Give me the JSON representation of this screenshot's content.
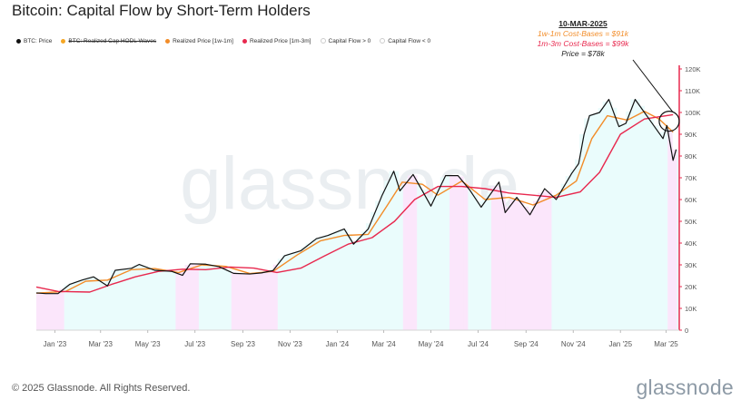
{
  "title": "Bitcoin: Capital Flow by Short-Term Holders",
  "legend": [
    {
      "label": "BTC: Price",
      "color": "#111111",
      "struck": false
    },
    {
      "label": "BTC: Realized Cap HODL Waves",
      "color": "#f5a623",
      "struck": true
    },
    {
      "label": "Realized Price [1w-1m]",
      "color": "#f28c28",
      "struck": false
    },
    {
      "label": "Realized Price [1m-3m]",
      "color": "#e8284e",
      "struck": false
    },
    {
      "label": "Capital Flow > 0",
      "color": "#ffffff",
      "struck": false,
      "outline": true
    },
    {
      "label": "Capital Flow < 0",
      "color": "#ffffff",
      "struck": false,
      "outline": true
    }
  ],
  "annotation": {
    "date": "10-MAR-2025",
    "line1": "1w-1m Cost-Bases = $91k",
    "line2": "1m-3m Cost-Bases = $99k",
    "line3": "Price = $78k"
  },
  "watermark": "glassnode",
  "footer": "© 2025 Glassnode. All Rights Reserved.",
  "brand": "glassnode",
  "colors": {
    "price": "#111111",
    "realized_1w_1m": "#f28c28",
    "realized_1m_3m": "#e8284e",
    "flow_positive": "#eafcfc",
    "flow_negative": "#fbe6fb",
    "axis": "#e8284e",
    "gridtext": "#555555"
  },
  "chart_data": {
    "type": "line",
    "title": "Bitcoin: Capital Flow by Short-Term Holders",
    "xlabel": "",
    "ylabel": "",
    "x_range": [
      "2022-12-08",
      "2025-03-18"
    ],
    "ylim": [
      0,
      120000
    ],
    "y_ticks": [
      0,
      10000,
      20000,
      30000,
      40000,
      50000,
      60000,
      70000,
      80000,
      90000,
      100000,
      110000,
      120000
    ],
    "y_tick_labels": [
      "0",
      "10K",
      "20K",
      "30K",
      "40K",
      "50K",
      "60K",
      "70K",
      "80K",
      "90K",
      "100K",
      "110K",
      "120K"
    ],
    "x_ticks": [
      {
        "date": "2023-01-01",
        "label": "Jan '23"
      },
      {
        "date": "2023-03-01",
        "label": "Mar '23"
      },
      {
        "date": "2023-05-01",
        "label": "May '23"
      },
      {
        "date": "2023-07-01",
        "label": "Jul '23"
      },
      {
        "date": "2023-09-01",
        "label": "Sep '23"
      },
      {
        "date": "2023-11-01",
        "label": "Nov '23"
      },
      {
        "date": "2024-01-01",
        "label": "Jan '24"
      },
      {
        "date": "2024-03-01",
        "label": "Mar '24"
      },
      {
        "date": "2024-05-01",
        "label": "May '24"
      },
      {
        "date": "2024-07-01",
        "label": "Jul '24"
      },
      {
        "date": "2024-09-01",
        "label": "Sep '24"
      },
      {
        "date": "2024-11-01",
        "label": "Nov '24"
      },
      {
        "date": "2025-01-01",
        "label": "Jan '25"
      },
      {
        "date": "2025-03-01",
        "label": "Mar '25"
      }
    ],
    "negative_flow_periods": [
      [
        "2022-12-08",
        "2023-01-12"
      ],
      [
        "2023-06-05",
        "2023-07-06"
      ],
      [
        "2023-08-18",
        "2023-10-16"
      ],
      [
        "2024-03-27",
        "2024-04-12"
      ],
      [
        "2024-05-24",
        "2024-06-16"
      ],
      [
        "2024-07-15",
        "2024-09-30"
      ],
      [
        "2025-03-04",
        "2025-03-14"
      ]
    ],
    "series": [
      {
        "name": "BTC: Price",
        "color": "#111111",
        "points": [
          [
            "2022-12-08",
            17100
          ],
          [
            "2022-12-20",
            16800
          ],
          [
            "2023-01-05",
            16800
          ],
          [
            "2023-01-20",
            21000
          ],
          [
            "2023-02-05",
            23000
          ],
          [
            "2023-02-20",
            24500
          ],
          [
            "2023-03-10",
            20300
          ],
          [
            "2023-03-20",
            27500
          ],
          [
            "2023-04-10",
            28400
          ],
          [
            "2023-04-20",
            30200
          ],
          [
            "2023-05-10",
            27500
          ],
          [
            "2023-06-01",
            27000
          ],
          [
            "2023-06-15",
            25200
          ],
          [
            "2023-06-25",
            30500
          ],
          [
            "2023-07-15",
            30300
          ],
          [
            "2023-08-01",
            29200
          ],
          [
            "2023-08-20",
            26100
          ],
          [
            "2023-09-10",
            25800
          ],
          [
            "2023-09-25",
            26300
          ],
          [
            "2023-10-10",
            27400
          ],
          [
            "2023-10-25",
            34200
          ],
          [
            "2023-11-15",
            36500
          ],
          [
            "2023-12-05",
            42000
          ],
          [
            "2023-12-20",
            43500
          ],
          [
            "2024-01-10",
            46500
          ],
          [
            "2024-01-22",
            39500
          ],
          [
            "2024-02-10",
            46500
          ],
          [
            "2024-02-28",
            62000
          ],
          [
            "2024-03-14",
            73000
          ],
          [
            "2024-03-22",
            64000
          ],
          [
            "2024-04-08",
            71500
          ],
          [
            "2024-04-20",
            64000
          ],
          [
            "2024-05-01",
            57000
          ],
          [
            "2024-05-20",
            71000
          ],
          [
            "2024-06-05",
            71000
          ],
          [
            "2024-06-20",
            64500
          ],
          [
            "2024-07-05",
            56500
          ],
          [
            "2024-07-28",
            68000
          ],
          [
            "2024-08-05",
            54000
          ],
          [
            "2024-08-20",
            61000
          ],
          [
            "2024-09-06",
            53000
          ],
          [
            "2024-09-25",
            65000
          ],
          [
            "2024-10-10",
            60000
          ],
          [
            "2024-10-30",
            72000
          ],
          [
            "2024-11-08",
            76500
          ],
          [
            "2024-11-15",
            90000
          ],
          [
            "2024-11-22",
            98500
          ],
          [
            "2024-12-05",
            100000
          ],
          [
            "2024-12-17",
            106000
          ],
          [
            "2024-12-30",
            93500
          ],
          [
            "2025-01-08",
            95000
          ],
          [
            "2025-01-20",
            106000
          ],
          [
            "2025-02-05",
            98000
          ],
          [
            "2025-02-25",
            88000
          ],
          [
            "2025-03-02",
            94000
          ],
          [
            "2025-03-10",
            78000
          ],
          [
            "2025-03-14",
            83000
          ]
        ]
      },
      {
        "name": "Realized Price [1w-1m]",
        "color": "#f28c28",
        "points": [
          [
            "2022-12-08",
            17000
          ],
          [
            "2023-01-15",
            17800
          ],
          [
            "2023-02-10",
            22500
          ],
          [
            "2023-03-10",
            23000
          ],
          [
            "2023-04-10",
            27800
          ],
          [
            "2023-05-10",
            28300
          ],
          [
            "2023-06-10",
            26500
          ],
          [
            "2023-07-10",
            30000
          ],
          [
            "2023-08-10",
            29300
          ],
          [
            "2023-09-10",
            26000
          ],
          [
            "2023-10-10",
            27000
          ],
          [
            "2023-11-10",
            34500
          ],
          [
            "2023-12-10",
            41000
          ],
          [
            "2024-01-10",
            43500
          ],
          [
            "2024-02-10",
            44000
          ],
          [
            "2024-03-05",
            57000
          ],
          [
            "2024-03-25",
            68000
          ],
          [
            "2024-04-20",
            67000
          ],
          [
            "2024-05-10",
            62000
          ],
          [
            "2024-06-10",
            68500
          ],
          [
            "2024-07-10",
            60000
          ],
          [
            "2024-08-10",
            61000
          ],
          [
            "2024-09-10",
            57500
          ],
          [
            "2024-10-10",
            62000
          ],
          [
            "2024-11-05",
            68500
          ],
          [
            "2024-11-25",
            88000
          ],
          [
            "2024-12-15",
            98500
          ],
          [
            "2025-01-10",
            96500
          ],
          [
            "2025-02-01",
            100500
          ],
          [
            "2025-02-20",
            97000
          ],
          [
            "2025-03-10",
            91000
          ]
        ]
      },
      {
        "name": "Realized Price [1m-3m]",
        "color": "#e8284e",
        "points": [
          [
            "2022-12-08",
            19800
          ],
          [
            "2023-01-05",
            17800
          ],
          [
            "2023-02-15",
            17500
          ],
          [
            "2023-03-15",
            21000
          ],
          [
            "2023-04-15",
            24500
          ],
          [
            "2023-05-15",
            27000
          ],
          [
            "2023-06-15",
            28000
          ],
          [
            "2023-07-15",
            27800
          ],
          [
            "2023-08-15",
            29000
          ],
          [
            "2023-09-15",
            28500
          ],
          [
            "2023-10-15",
            26500
          ],
          [
            "2023-11-15",
            28500
          ],
          [
            "2023-12-15",
            34000
          ],
          [
            "2024-01-15",
            39500
          ],
          [
            "2024-02-15",
            42500
          ],
          [
            "2024-03-15",
            50000
          ],
          [
            "2024-04-10",
            60000
          ],
          [
            "2024-05-10",
            66000
          ],
          [
            "2024-06-10",
            66000
          ],
          [
            "2024-07-10",
            65000
          ],
          [
            "2024-08-10",
            63000
          ],
          [
            "2024-09-10",
            62000
          ],
          [
            "2024-10-10",
            61000
          ],
          [
            "2024-11-10",
            63500
          ],
          [
            "2024-12-05",
            72500
          ],
          [
            "2025-01-01",
            90000
          ],
          [
            "2025-02-01",
            97000
          ],
          [
            "2025-03-10",
            99000
          ]
        ]
      }
    ]
  }
}
